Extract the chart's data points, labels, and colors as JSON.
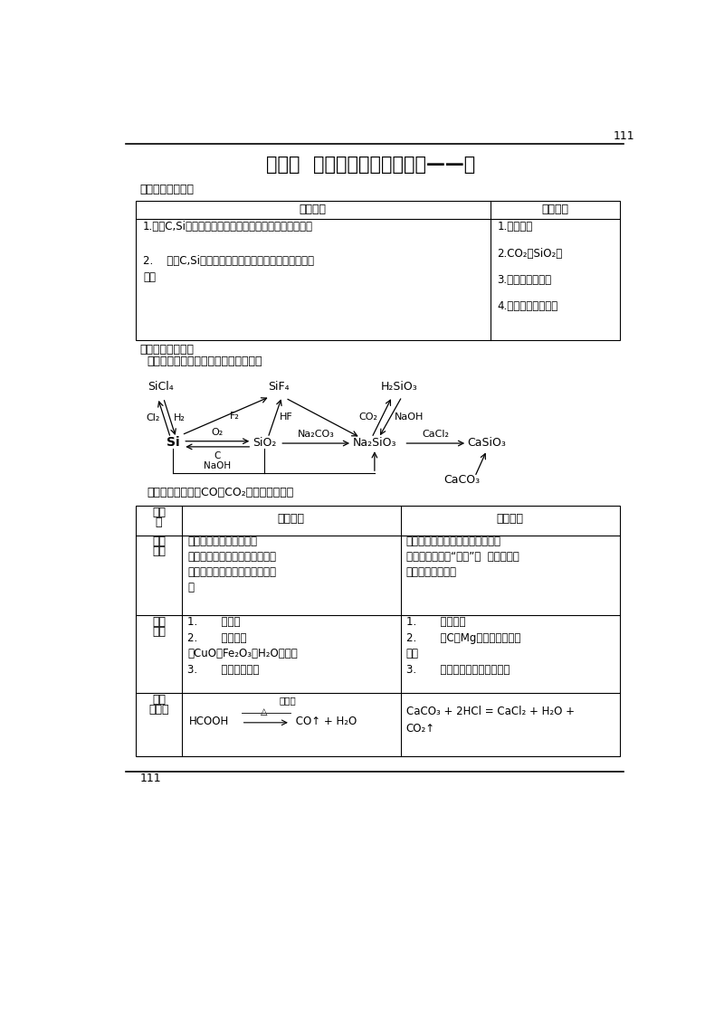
{
  "page_number": "111",
  "title": "第一节  无机非金属材料的主角——硬",
  "section1_label": "《高考目标定位》",
  "table1_header_left": "考纲导引",
  "table1_header_right": "考点梳理",
  "table1_col1_item1": "1.了解C,Si元素单质及其重要化合物的主要性质及应用。",
  "table1_col1_item2a": "2.    了解C,Si元素单质及其重要化合物对环境质量的影",
  "table1_col1_item2b": "响。",
  "table1_col2_items": [
    "1.碳、确。",
    "2.CO₂和SiO₂。",
    "3.确酸和确酸盐。",
    "4.无机非金属材料。"
  ],
  "section2_label": "《考纲知识梳理》",
  "section2_sub": "一、确及其化合物之间的相互转化关系",
  "section3_sub": "二、碳的氧化物（CO、CO₂）性质的比较：",
  "bg_color": "#ffffff",
  "text_color": "#000000"
}
